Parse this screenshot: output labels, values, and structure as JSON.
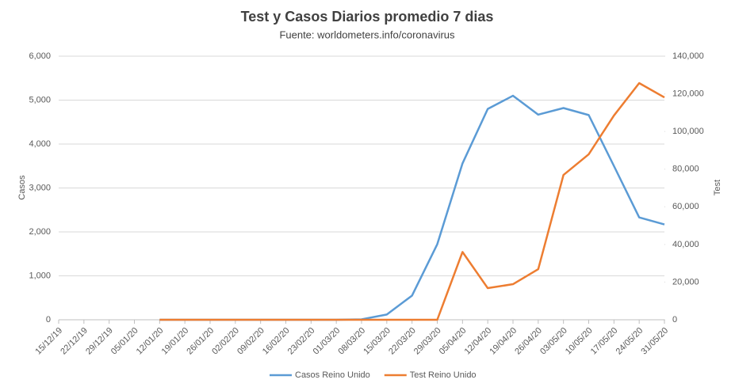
{
  "chart_data": {
    "type": "line",
    "title": "Test y Casos Diarios promedio 7 dias",
    "subtitle": "Fuente: worldometers.info/coronavirus",
    "ylabel": "Casos",
    "y2label": "Test",
    "categories": [
      "15/12/19",
      "22/12/19",
      "29/12/19",
      "05/01/20",
      "12/01/20",
      "19/01/20",
      "26/01/20",
      "02/02/20",
      "09/02/20",
      "16/02/20",
      "23/02/20",
      "01/03/20",
      "08/03/20",
      "15/03/20",
      "22/03/20",
      "29/03/20",
      "05/04/20",
      "12/04/20",
      "19/04/20",
      "26/04/20",
      "03/05/20",
      "10/05/20",
      "17/05/20",
      "24/05/20",
      "31/05/20"
    ],
    "series": [
      {
        "name": "Casos  Reino Unido",
        "color": "#5b9bd5",
        "axis": "y",
        "values": [
          null,
          null,
          null,
          null,
          0,
          0,
          0,
          0,
          0,
          0,
          0,
          0,
          10,
          120,
          550,
          1720,
          3560,
          4800,
          5100,
          4670,
          4820,
          4660,
          3500,
          2330,
          2170
        ]
      },
      {
        "name": "Test Reino Unido",
        "color": "#ed7d31",
        "axis": "y2",
        "values": [
          null,
          null,
          null,
          null,
          0,
          0,
          0,
          0,
          0,
          0,
          0,
          0,
          0,
          0,
          0,
          0,
          36000,
          16800,
          18900,
          26900,
          76900,
          87900,
          108500,
          125700,
          118100
        ]
      }
    ],
    "ylim": [
      0,
      6000
    ],
    "yticks": [
      0,
      {
        "value": 1000,
        "label": "1,000"
      },
      {
        "value": 2000,
        "label": "2,000"
      },
      {
        "value": 3000,
        "label": "3,000"
      },
      {
        "value": 4000,
        "label": "4,000"
      },
      {
        "value": 5000,
        "label": "5,000"
      },
      {
        "value": 6000,
        "label": "6,000"
      }
    ],
    "y2lim": [
      0,
      140000
    ],
    "y2ticks": [
      0,
      {
        "value": 20000,
        "label": "20,000"
      },
      {
        "value": 40000,
        "label": "40,000"
      },
      {
        "value": 60000,
        "label": "60,000"
      },
      {
        "value": 80000,
        "label": "80,000"
      },
      {
        "value": 100000,
        "label": "100,000"
      },
      {
        "value": 120000,
        "label": "120,000"
      },
      {
        "value": 140000,
        "label": "140,000"
      }
    ],
    "grid": true,
    "legend": "bottom"
  }
}
